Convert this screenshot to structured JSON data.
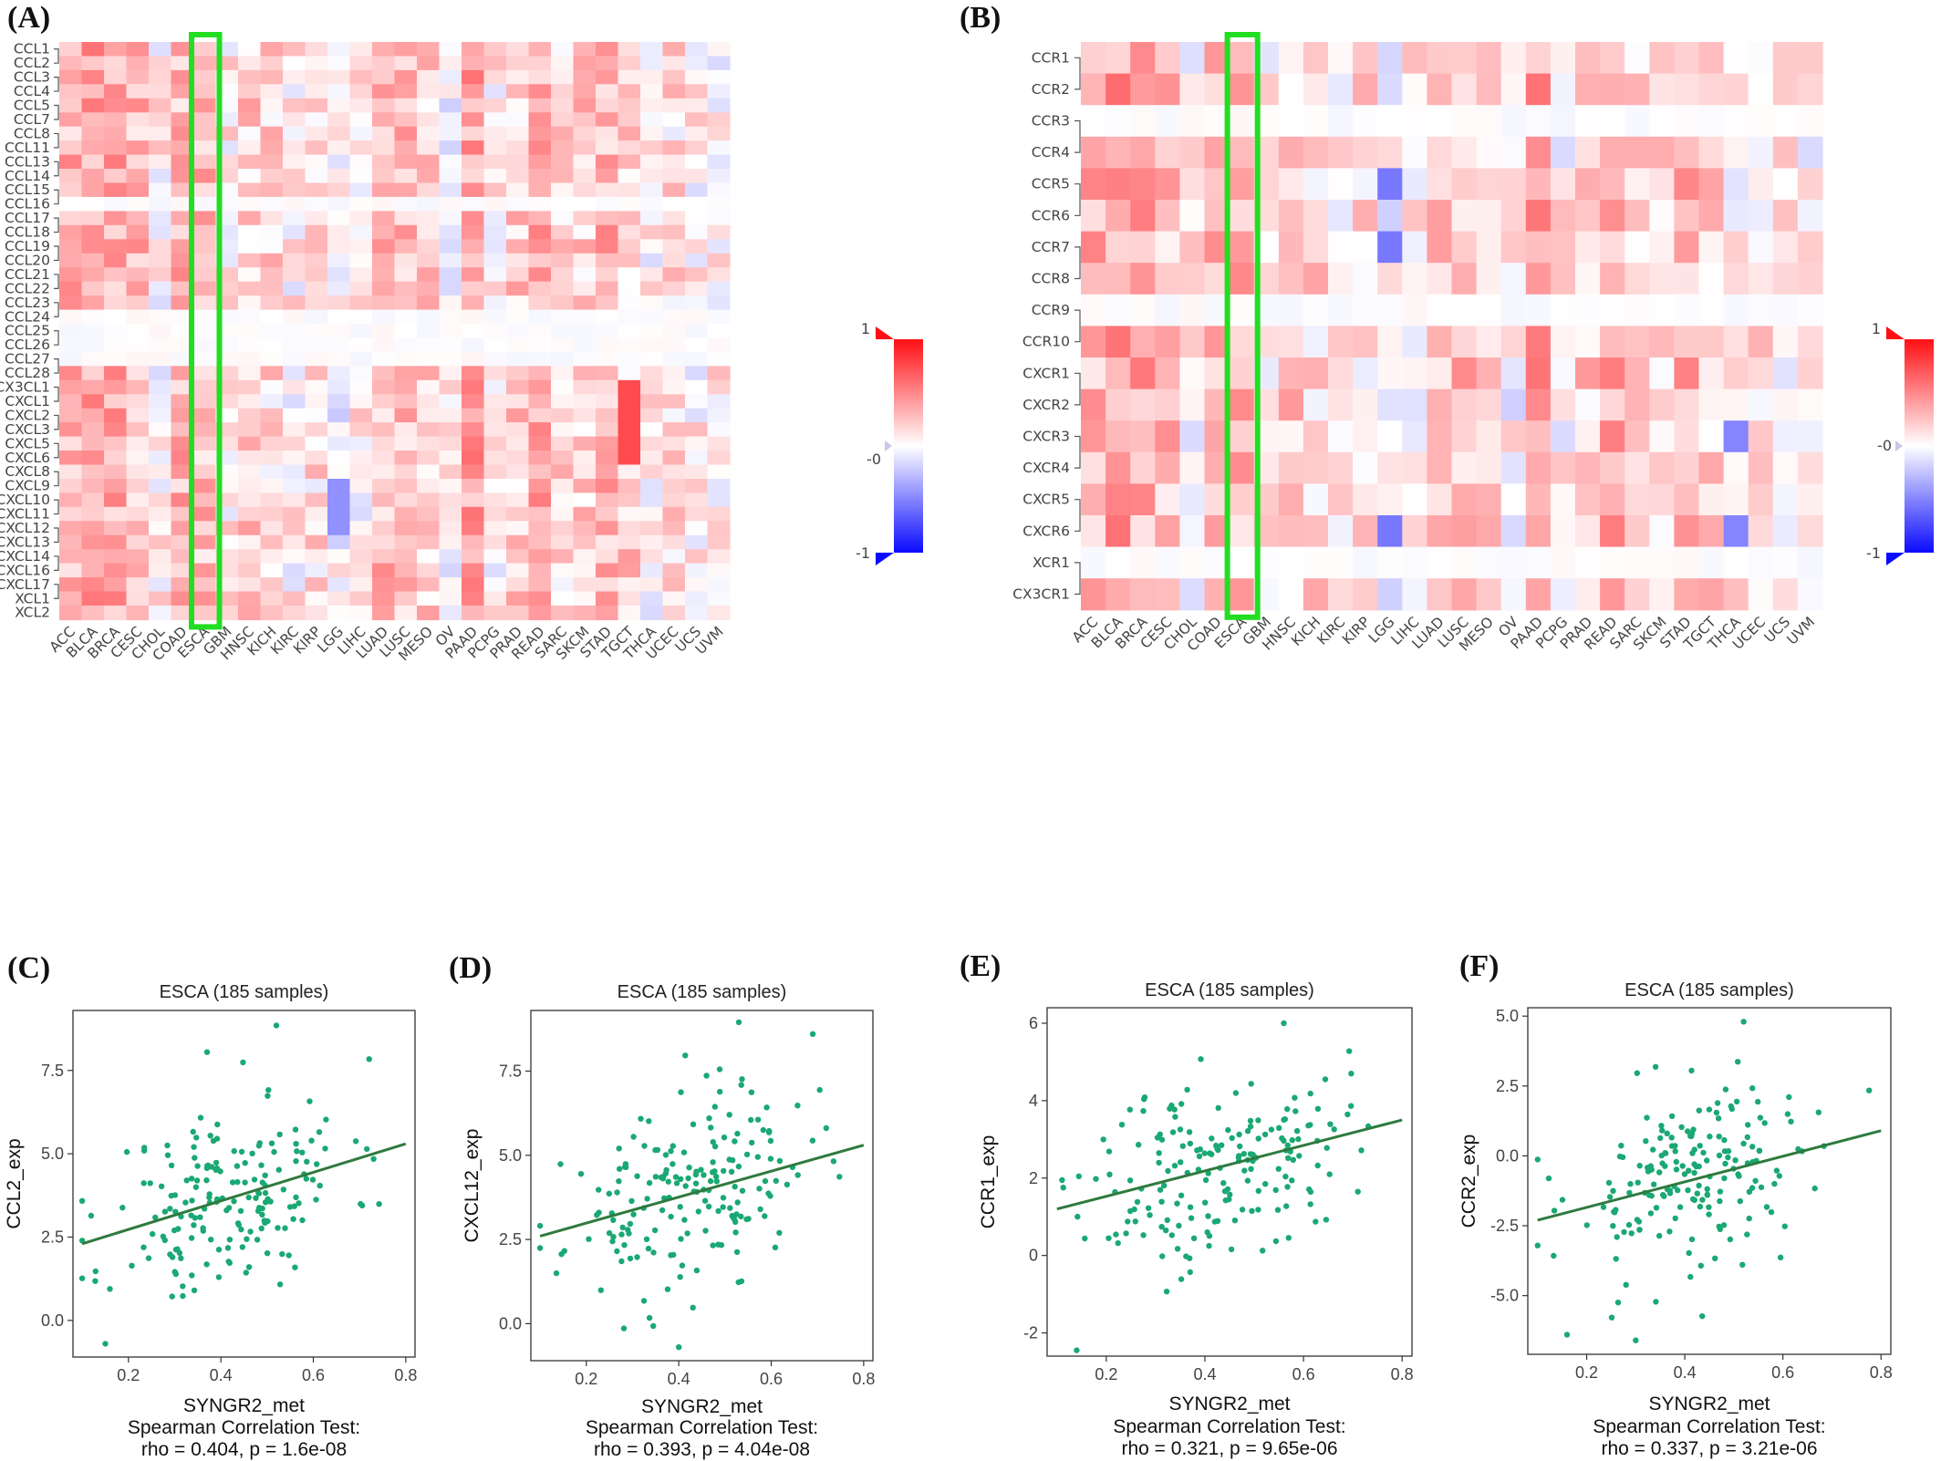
{
  "panels": {
    "A": "(A)",
    "B": "(B)",
    "C": "(C)",
    "D": "(D)",
    "E": "(E)",
    "F": "(F)"
  },
  "colors": {
    "positive": "#e8202a",
    "negative": "#1f1fe6",
    "highlight_box": "#22dd22",
    "scatter_point": "#1aa874",
    "fit_line": "#2f7a3e"
  },
  "chart_data": [
    {
      "id": "A",
      "type": "heatmap",
      "rows": [
        "CCL1",
        "CCL2",
        "CCL3",
        "CCL4",
        "CCL5",
        "CCL7",
        "CCL8",
        "CCL11",
        "CCL13",
        "CCL14",
        "CCL15",
        "CCL16",
        "CCL17",
        "CCL18",
        "CCL19",
        "CCL20",
        "CCL21",
        "CCL22",
        "CCL23",
        "CCL24",
        "CCL25",
        "CCL26",
        "CCL27",
        "CCL28",
        "CX3CL1",
        "CXCL1",
        "CXCL2",
        "CXCL3",
        "CXCL5",
        "CXCL6",
        "CXCL8",
        "CXCL9",
        "CXCL10",
        "CXCL11",
        "CXCL12",
        "CXCL13",
        "CXCL14",
        "CXCL16",
        "CXCL17",
        "XCL1",
        "XCL2"
      ],
      "columns": [
        "ACC",
        "BLCA",
        "BRCA",
        "CESC",
        "CHOL",
        "COAD",
        "ESCA",
        "GBM",
        "HNSC",
        "KICH",
        "KIRC",
        "KIRP",
        "LGG",
        "LIHC",
        "LUAD",
        "LUSC",
        "MESO",
        "OV",
        "PAAD",
        "PCPG",
        "PRAD",
        "READ",
        "SARC",
        "SKCM",
        "STAD",
        "TGCT",
        "THCA",
        "UCEC",
        "UCS",
        "UVM"
      ],
      "highlight_column": "ESCA",
      "colorbar": {
        "max_label": "1",
        "mid_label": "-0",
        "min_label": "-1",
        "range": [
          -1,
          1
        ]
      }
    },
    {
      "id": "B",
      "type": "heatmap",
      "rows": [
        "CCR1",
        "CCR2",
        "CCR3",
        "CCR4",
        "CCR5",
        "CCR6",
        "CCR7",
        "CCR8",
        "CCR9",
        "CCR10",
        "CXCR1",
        "CXCR2",
        "CXCR3",
        "CXCR4",
        "CXCR5",
        "CXCR6",
        "XCR1",
        "CX3CR1"
      ],
      "columns": [
        "ACC",
        "BLCA",
        "BRCA",
        "CESC",
        "CHOL",
        "COAD",
        "ESCA",
        "GBM",
        "HNSC",
        "KICH",
        "KIRC",
        "KIRP",
        "LGG",
        "LIHC",
        "LUAD",
        "LUSC",
        "MESO",
        "OV",
        "PAAD",
        "PCPG",
        "PRAD",
        "READ",
        "SARC",
        "SKCM",
        "STAD",
        "TGCT",
        "THCA",
        "UCEC",
        "UCS",
        "UVM"
      ],
      "highlight_column": "ESCA",
      "colorbar": {
        "max_label": "1",
        "mid_label": "-0",
        "min_label": "-1",
        "range": [
          -1,
          1
        ]
      }
    },
    {
      "id": "C",
      "type": "scatter",
      "title": "ESCA (185 samples)",
      "xlabel": "SYNGR2_met",
      "ylabel": "CCL2_exp",
      "xlim": [
        0.08,
        0.82
      ],
      "ylim": [
        -1.1,
        9.3
      ],
      "xticks": [
        0.2,
        0.4,
        0.6,
        0.8
      ],
      "xtick_labels": [
        "0.2",
        "0.4",
        "0.6",
        "0.8"
      ],
      "yticks": [
        0,
        2.5,
        5,
        7.5
      ],
      "ytick_labels": [
        "0.0",
        "2.5",
        "5.0",
        "7.5"
      ],
      "fit": {
        "x": [
          0.1,
          0.8
        ],
        "y": [
          2.3,
          5.3
        ]
      },
      "stat_title": "Spearman Correlation Test:",
      "stat": "rho = 0.404, p = 1.6e-08",
      "n": 185,
      "seed": 11,
      "x_center": 0.42,
      "x_spread": 0.13,
      "resid_sd": 1.45,
      "extra_points": [
        {
          "x": 0.52,
          "y": 8.85
        },
        {
          "x": 0.37,
          "y": 8.05
        },
        {
          "x": 0.15,
          "y": -0.7
        }
      ]
    },
    {
      "id": "D",
      "type": "scatter",
      "title": "ESCA (185 samples)",
      "xlabel": "SYNGR2_met",
      "ylabel": "CXCL12_exp",
      "xlim": [
        0.08,
        0.82
      ],
      "ylim": [
        -1.1,
        9.3
      ],
      "xticks": [
        0.2,
        0.4,
        0.6,
        0.8
      ],
      "xtick_labels": [
        "0.2",
        "0.4",
        "0.6",
        "0.8"
      ],
      "yticks": [
        0,
        2.5,
        5,
        7.5
      ],
      "ytick_labels": [
        "0.0",
        "2.5",
        "5.0",
        "7.5"
      ],
      "fit": {
        "x": [
          0.1,
          0.8
        ],
        "y": [
          2.6,
          5.3
        ]
      },
      "stat_title": "Spearman Correlation Test:",
      "stat": "rho = 0.393, p = 4.04e-08",
      "n": 185,
      "seed": 23,
      "x_center": 0.42,
      "x_spread": 0.13,
      "resid_sd": 1.35,
      "extra_points": [
        {
          "x": 0.53,
          "y": 8.95
        },
        {
          "x": 0.69,
          "y": 8.6
        },
        {
          "x": 0.4,
          "y": -0.7
        }
      ]
    },
    {
      "id": "E",
      "type": "scatter",
      "title": "ESCA (185 samples)",
      "xlabel": "SYNGR2_met",
      "ylabel": "CCR1_exp",
      "xlim": [
        0.08,
        0.82
      ],
      "ylim": [
        -2.6,
        6.4
      ],
      "xticks": [
        0.2,
        0.4,
        0.6,
        0.8
      ],
      "xtick_labels": [
        "0.2",
        "0.4",
        "0.6",
        "0.8"
      ],
      "yticks": [
        -2,
        0,
        2,
        4,
        6
      ],
      "ytick_labels": [
        "-2",
        "0",
        "2",
        "4",
        "6"
      ],
      "fit": {
        "x": [
          0.1,
          0.8
        ],
        "y": [
          1.2,
          3.5
        ]
      },
      "stat_title": "Spearman Correlation Test:",
      "stat": "rho = 0.321, p = 9.65e-06",
      "n": 185,
      "seed": 37,
      "x_center": 0.42,
      "x_spread": 0.13,
      "resid_sd": 1.2,
      "extra_points": [
        {
          "x": 0.56,
          "y": 6.0
        },
        {
          "x": 0.14,
          "y": -2.45
        }
      ]
    },
    {
      "id": "F",
      "type": "scatter",
      "title": "ESCA (185 samples)",
      "xlabel": "SYNGR2_met",
      "ylabel": "CCR2_exp",
      "xlim": [
        0.08,
        0.82
      ],
      "ylim": [
        -7.1,
        5.3
      ],
      "xticks": [
        0.2,
        0.4,
        0.6,
        0.8
      ],
      "xtick_labels": [
        "0.2",
        "0.4",
        "0.6",
        "0.8"
      ],
      "yticks": [
        -5,
        -2.5,
        0,
        2.5,
        5
      ],
      "ytick_labels": [
        "-5.0",
        "-2.5",
        "0.0",
        "2.5",
        "5.0"
      ],
      "fit": {
        "x": [
          0.1,
          0.8
        ],
        "y": [
          -2.3,
          0.9
        ]
      },
      "stat_title": "Spearman Correlation Test:",
      "stat": "rho = 0.337, p = 3.21e-06",
      "n": 185,
      "seed": 53,
      "x_center": 0.42,
      "x_spread": 0.13,
      "resid_sd": 1.75,
      "extra_points": [
        {
          "x": 0.52,
          "y": 4.8
        },
        {
          "x": 0.16,
          "y": -6.4
        },
        {
          "x": 0.3,
          "y": -6.6
        }
      ]
    }
  ]
}
